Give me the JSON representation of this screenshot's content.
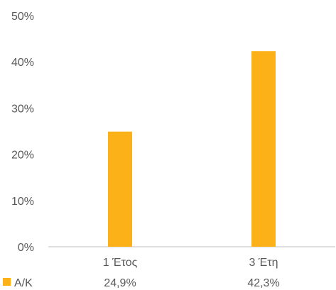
{
  "chart_data": {
    "type": "bar",
    "categories": [
      "1 Έτος",
      "3 Έτη"
    ],
    "series": [
      {
        "name": "Α/Κ",
        "values": [
          24.9,
          42.3
        ],
        "labels": [
          "24,9%",
          "42,3%"
        ],
        "color": "#FBB117"
      }
    ],
    "ylim": [
      0,
      50
    ],
    "yticks": [
      0,
      10,
      20,
      30,
      40,
      50
    ],
    "ytick_labels": [
      "0%",
      "10%",
      "20%",
      "30%",
      "40%",
      "50%"
    ],
    "grid": false,
    "legend": "data-table-bottom",
    "axis_color": "#BFBFBF"
  }
}
